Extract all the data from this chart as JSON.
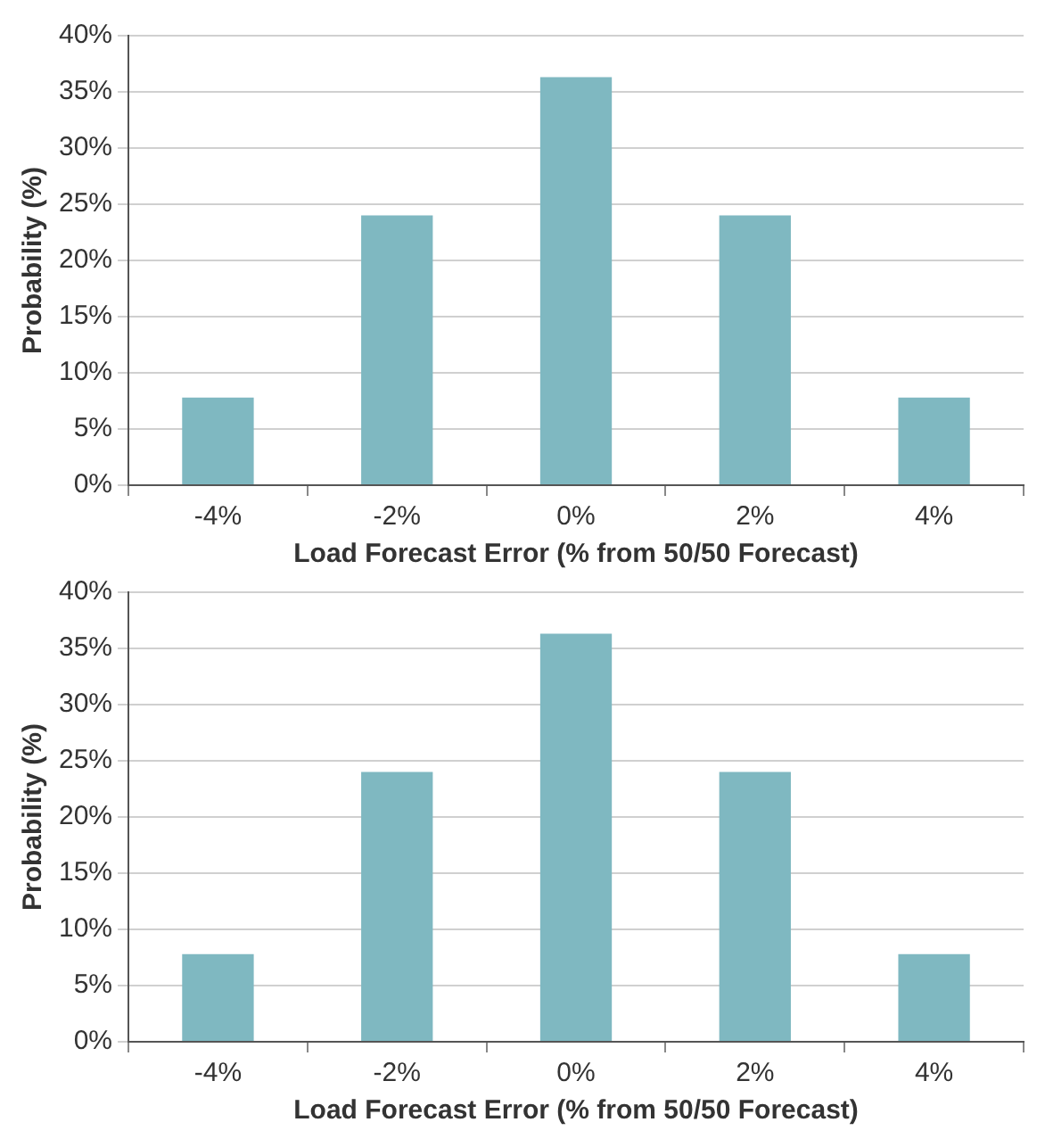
{
  "chart_data": [
    {
      "type": "bar",
      "categories": [
        "-4%",
        "-2%",
        "0%",
        "2%",
        "4%"
      ],
      "values": [
        7.8,
        24.0,
        36.3,
        24.0,
        7.8
      ],
      "color": "#7fb8c1",
      "xlabel": "Load Forecast Error (% from 50/50 Forecast)",
      "ylabel": "Probability (%)",
      "ylim": [
        0,
        40
      ],
      "yticks": [
        {
          "value": 0,
          "label": "0%"
        },
        {
          "value": 5,
          "label": "5%"
        },
        {
          "value": 10,
          "label": "10%"
        },
        {
          "value": 15,
          "label": "15%"
        },
        {
          "value": 20,
          "label": "20%"
        },
        {
          "value": 25,
          "label": "25%"
        },
        {
          "value": 30,
          "label": "30%"
        },
        {
          "value": 35,
          "label": "35%"
        },
        {
          "value": 40,
          "label": "40%"
        }
      ],
      "grid": "y",
      "legend": false
    },
    {
      "type": "bar",
      "categories": [
        "-4%",
        "-2%",
        "0%",
        "2%",
        "4%"
      ],
      "values": [
        7.8,
        24.0,
        36.3,
        24.0,
        7.8
      ],
      "color": "#7fb8c1",
      "xlabel": "Load Forecast Error (% from 50/50 Forecast)",
      "ylabel": "Probability (%)",
      "ylim": [
        0,
        40
      ],
      "yticks": [
        {
          "value": 0,
          "label": "0%"
        },
        {
          "value": 5,
          "label": "5%"
        },
        {
          "value": 10,
          "label": "10%"
        },
        {
          "value": 15,
          "label": "15%"
        },
        {
          "value": 20,
          "label": "20%"
        },
        {
          "value": 25,
          "label": "25%"
        },
        {
          "value": 30,
          "label": "30%"
        },
        {
          "value": 35,
          "label": "35%"
        },
        {
          "value": 40,
          "label": "40%"
        }
      ],
      "grid": "y",
      "legend": false
    }
  ]
}
